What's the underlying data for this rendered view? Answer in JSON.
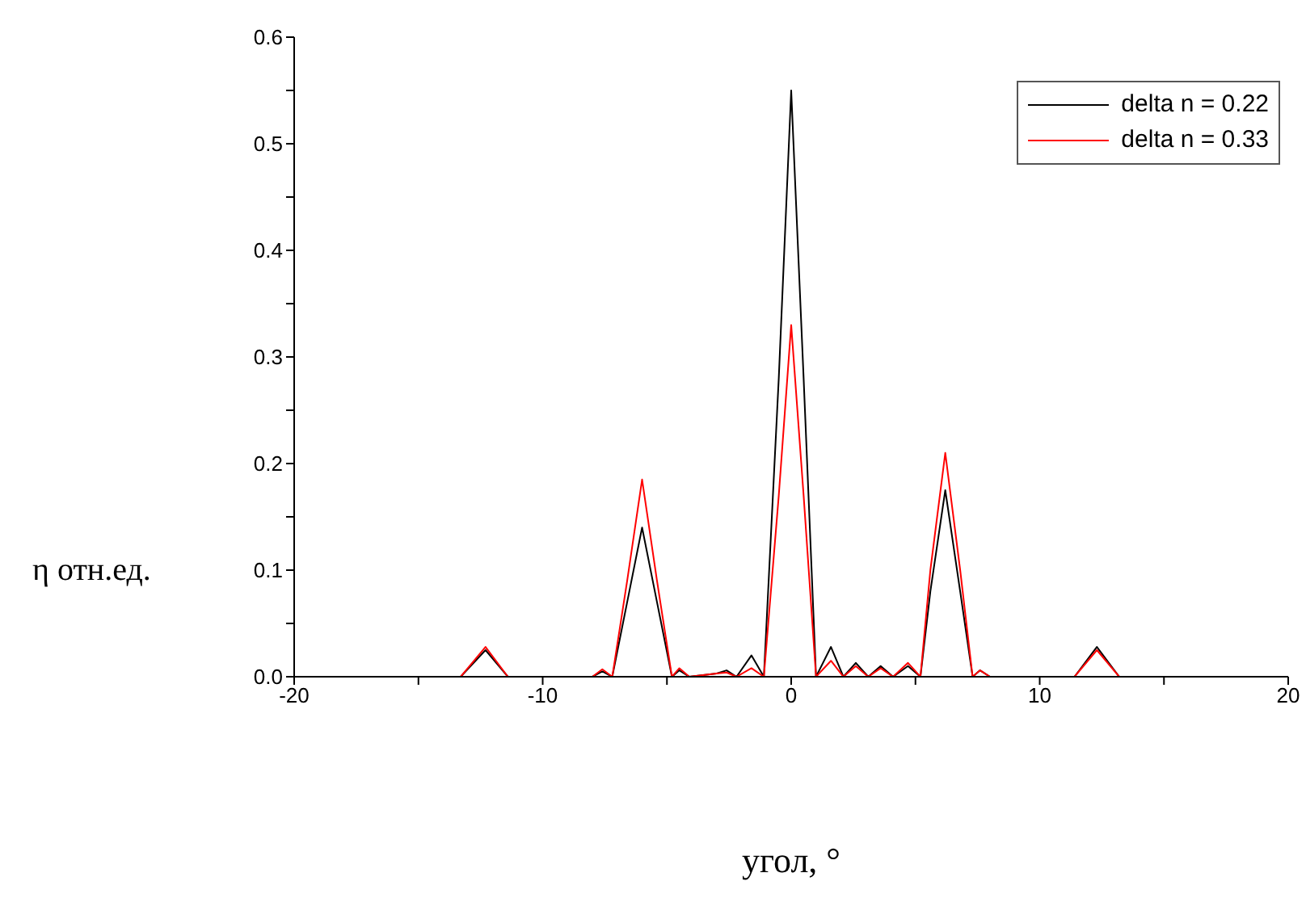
{
  "chart_data": {
    "type": "line",
    "xlabel": "угол, °",
    "ylabel": "η отн.ед.",
    "x": [
      -20,
      -14,
      -13.3,
      -12.3,
      -11.4,
      -10,
      -8,
      -7.6,
      -7.2,
      -6.6,
      -6,
      -5.4,
      -4.8,
      -4.5,
      -4.1,
      -3,
      -2.6,
      -2.2,
      -1.6,
      -1.1,
      -0.5,
      0,
      0.5,
      1,
      1.6,
      2.1,
      2.6,
      3.1,
      3.6,
      4.1,
      4.7,
      5.2,
      5.6,
      6.2,
      6.8,
      7.3,
      7.6,
      8,
      10,
      11.4,
      12.3,
      13.2,
      14,
      20
    ],
    "series": [
      {
        "name": "delta n = 0.22",
        "color": "#000000",
        "values": [
          0,
          0,
          0,
          0.025,
          0,
          0,
          0,
          0.005,
          0,
          0.07,
          0.14,
          0.07,
          0,
          0.006,
          0,
          0.003,
          0.006,
          0,
          0.02,
          0,
          0.28,
          0.55,
          0.28,
          0,
          0.028,
          0,
          0.013,
          0,
          0.01,
          0,
          0.01,
          0,
          0.08,
          0.175,
          0.08,
          0,
          0.006,
          0,
          0,
          0,
          0.028,
          0,
          0,
          0
        ]
      },
      {
        "name": "delta n = 0.33",
        "color": "#ff0000",
        "values": [
          0,
          0,
          0,
          0.028,
          0,
          0,
          0,
          0.007,
          0,
          0.09,
          0.185,
          0.09,
          0,
          0.008,
          0,
          0.003,
          0.004,
          0,
          0.008,
          0,
          0.17,
          0.33,
          0.17,
          0,
          0.015,
          0,
          0.01,
          0,
          0.008,
          0,
          0.013,
          0,
          0.1,
          0.21,
          0.1,
          0,
          0.006,
          0,
          0,
          0,
          0.025,
          0,
          0,
          0
        ]
      }
    ],
    "xlim": [
      -20,
      20
    ],
    "xticks": [
      -20,
      {
        "value": -15,
        "label": null
      },
      -10,
      {
        "value": -5,
        "label": null
      },
      0,
      {
        "value": 5,
        "label": null
      },
      10,
      {
        "value": 15,
        "label": null
      },
      20
    ],
    "ylim": [
      0,
      0.6
    ],
    "yticks": [
      {
        "value": 0,
        "label": "0.0"
      },
      {
        "value": 0.05,
        "label": null
      },
      {
        "value": 0.1,
        "label": "0.1"
      },
      {
        "value": 0.15,
        "label": null
      },
      {
        "value": 0.2,
        "label": "0.2"
      },
      {
        "value": 0.25,
        "label": null
      },
      {
        "value": 0.3,
        "label": "0.3"
      },
      {
        "value": 0.35,
        "label": null
      },
      {
        "value": 0.4,
        "label": "0.4"
      },
      {
        "value": 0.45,
        "label": null
      },
      {
        "value": 0.5,
        "label": "0.5"
      },
      {
        "value": 0.55,
        "label": null
      },
      {
        "value": 0.6,
        "label": "0.6"
      }
    ],
    "grid": false,
    "legend": "top right",
    "marker": "none",
    "line_style": "solid"
  }
}
